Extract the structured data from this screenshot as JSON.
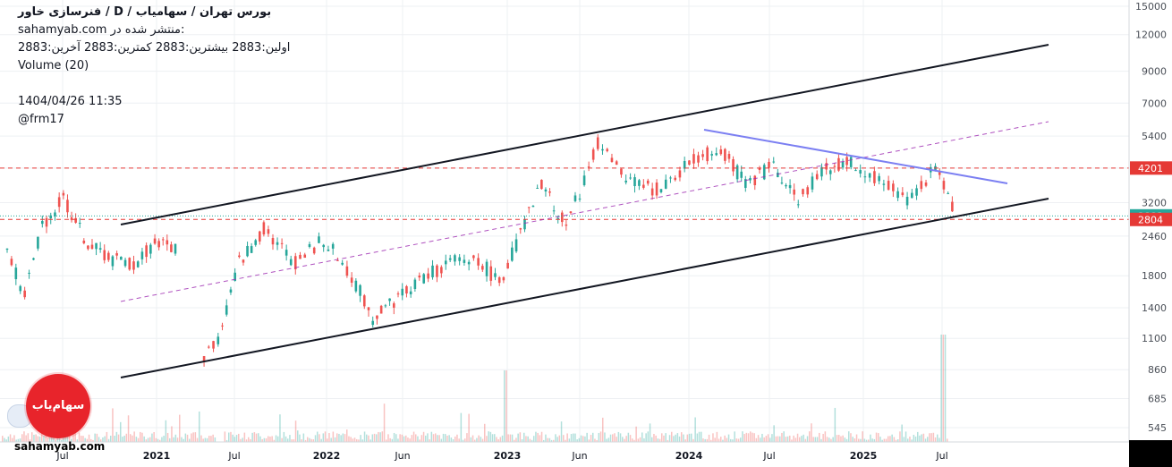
{
  "header": {
    "title": "فنرسازی خاور  /  D  /  بورس تهران / سهامیاب",
    "published": "sahamyab.com منتشر شده در:",
    "ohlc": "اولین:2883  بیشترین:2883  کمترین:2883  آخرین:2883",
    "volume": "Volume (20)",
    "date": "1404/04/26 11:35",
    "author": "@frm17"
  },
  "watermark": "sahamyab.com",
  "logo_text": "سهام‌یاب",
  "colors": {
    "up": "#26a69a",
    "down": "#ef5350",
    "channel": "#131722",
    "midline": "#9c27b0",
    "resistance": "#7b7ff2",
    "hline": "#e53935",
    "current": "#26a69a"
  },
  "chart_data": {
    "type": "candlestick",
    "y_scale": "log",
    "y_ticks": [
      15000,
      12000,
      9000,
      7000,
      5400,
      4200,
      3200,
      2883,
      2460,
      1800,
      1400,
      1100,
      860,
      685,
      545
    ],
    "x_ticks": [
      "Jul",
      "2021",
      "Jul",
      "2022",
      "Jun",
      "2023",
      "Jun",
      "2024",
      "Jul",
      "2025",
      "Jul"
    ],
    "price_labels": [
      {
        "value": 4201,
        "color": "#e53935"
      },
      {
        "value": 2883,
        "color": "#26a69a"
      },
      {
        "value": 2804,
        "color": "#e53935"
      }
    ],
    "series": [
      {
        "segments": [
          {
            "t0": 0.0,
            "t1": 0.5,
            "p0": 2200,
            "p1": 1550
          },
          {
            "t0": 0.5,
            "t1": 1.0,
            "p0": 1550,
            "p1": 2700
          },
          {
            "t0": 1.0,
            "t1": 1.6,
            "p0": 2700,
            "p1": 3300
          },
          {
            "t0": 1.6,
            "t1": 2.3,
            "p0": 3300,
            "p1": 2300
          },
          {
            "t0": 2.3,
            "t1": 3.0,
            "p0": 2300,
            "p1": 2050
          },
          {
            "t0": 3.0,
            "t1": 3.6,
            "p0": 2050,
            "p1": 1950
          },
          {
            "t0": 3.6,
            "t1": 4.2,
            "p0": 1950,
            "p1": 2350
          },
          {
            "t0": 4.2,
            "t1": 4.9,
            "p0": 2350,
            "p1": 2200
          }
        ]
      },
      {
        "segments": [
          {
            "t0": 5.6,
            "t1": 6.0,
            "p0": 960,
            "p1": 1100
          },
          {
            "t0": 6.0,
            "t1": 6.6,
            "p0": 1100,
            "p1": 2000
          },
          {
            "t0": 6.6,
            "t1": 7.3,
            "p0": 2000,
            "p1": 2600
          },
          {
            "t0": 7.3,
            "t1": 8.2,
            "p0": 2600,
            "p1": 2000
          },
          {
            "t0": 8.2,
            "t1": 9.0,
            "p0": 2000,
            "p1": 2400
          },
          {
            "t0": 9.0,
            "t1": 9.8,
            "p0": 2400,
            "p1": 1800
          },
          {
            "t0": 9.8,
            "t1": 10.4,
            "p0": 1800,
            "p1": 1300
          },
          {
            "t0": 10.4,
            "t1": 11.6,
            "p0": 1300,
            "p1": 1700
          },
          {
            "t0": 11.6,
            "t1": 12.6,
            "p0": 1700,
            "p1": 2000
          },
          {
            "t0": 12.6,
            "t1": 13.4,
            "p0": 2000,
            "p1": 2050
          },
          {
            "t0": 13.4,
            "t1": 14.0,
            "p0": 2050,
            "p1": 1700
          },
          {
            "t0": 14.0,
            "t1": 14.6,
            "p0": 1700,
            "p1": 2500
          },
          {
            "t0": 14.6,
            "t1": 15.2,
            "p0": 2500,
            "p1": 3700
          },
          {
            "t0": 15.2,
            "t1": 15.9,
            "p0": 3700,
            "p1": 2650
          },
          {
            "t0": 15.9,
            "t1": 16.8,
            "p0": 2650,
            "p1": 5100
          },
          {
            "t0": 16.8,
            "t1": 17.6,
            "p0": 5100,
            "p1": 3800
          },
          {
            "t0": 17.6,
            "t1": 18.6,
            "p0": 3800,
            "p1": 3500
          },
          {
            "t0": 18.6,
            "t1": 19.4,
            "p0": 3500,
            "p1": 4400
          },
          {
            "t0": 19.4,
            "t1": 20.3,
            "p0": 4400,
            "p1": 4900
          },
          {
            "t0": 20.3,
            "t1": 21.0,
            "p0": 4900,
            "p1": 3700
          },
          {
            "t0": 21.0,
            "t1": 21.8,
            "p0": 3700,
            "p1": 4300
          },
          {
            "t0": 21.8,
            "t1": 22.5,
            "p0": 4300,
            "p1": 3300
          },
          {
            "t0": 22.5,
            "t1": 23.3,
            "p0": 3300,
            "p1": 4200
          },
          {
            "t0": 23.3,
            "t1": 24.0,
            "p0": 4200,
            "p1": 4400
          },
          {
            "t0": 24.0,
            "t1": 24.8,
            "p0": 4400,
            "p1": 3800
          },
          {
            "t0": 24.8,
            "t1": 25.6,
            "p0": 3800,
            "p1": 3300
          },
          {
            "t0": 25.6,
            "t1": 26.4,
            "p0": 3300,
            "p1": 4200
          },
          {
            "t0": 26.4,
            "t1": 27.0,
            "p0": 4200,
            "p1": 2883
          }
        ]
      }
    ]
  }
}
